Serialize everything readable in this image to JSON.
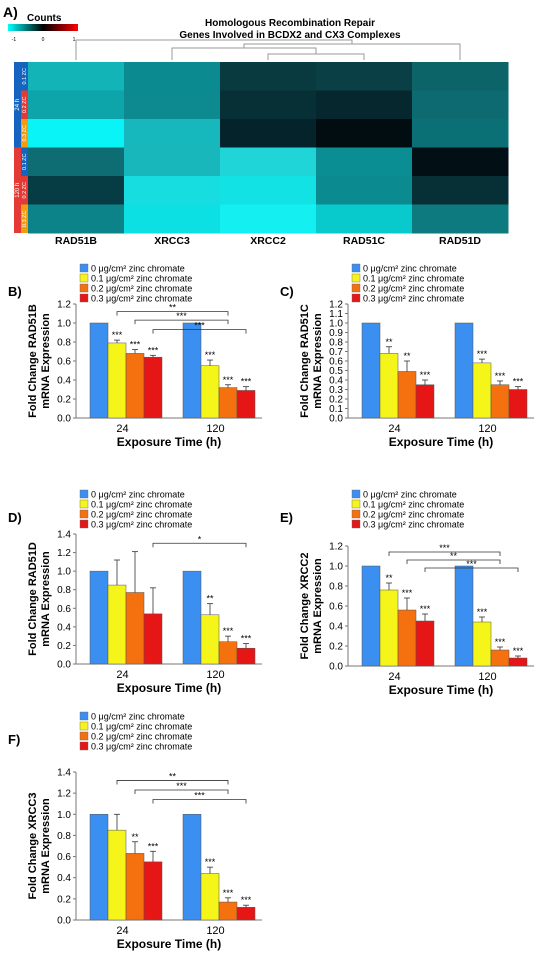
{
  "heatmap": {
    "panel_label": "A)",
    "legend_title": "Counts",
    "legend_ticks": [
      "-1",
      "0",
      "1"
    ],
    "title_line1": "Homologous Recombination Repair",
    "title_line2": "Genes Involved in BCDX2 and CX3 Complexes",
    "column_labels": [
      "RAD51B",
      "XRCC3",
      "XRCC2",
      "RAD51C",
      "RAD51D"
    ],
    "time_groups": [
      "24 h",
      "120 h"
    ],
    "row_labels": [
      "0.1 ZC",
      "0.2 ZC",
      "0.3 ZC",
      "0.1 ZC",
      "0.2 ZC",
      "0.3 ZC"
    ],
    "row_colors": [
      "#1565c0",
      "#e53935",
      "#f39c12",
      "#1565c0",
      "#e53935",
      "#f39c12"
    ],
    "time_colors": [
      "#1565c0",
      "#e53935"
    ],
    "cell_colors": [
      [
        "#12b4b8",
        "#0b8a8f",
        "#093a40",
        "#0a3f45",
        "#0c6368"
      ],
      [
        "#0ea5aa",
        "#0c8a8f",
        "#072f36",
        "#06272e",
        "#0c6a70"
      ],
      [
        "#08f4f6",
        "#17b8bd",
        "#04232a",
        "#020d12",
        "#0a7075"
      ],
      [
        "#0e6d73",
        "#17b7bc",
        "#1fd5d8",
        "#0b8e93",
        "#020f14"
      ],
      [
        "#063d44",
        "#18dde0",
        "#12e2e4",
        "#0b8a90",
        "#062f36"
      ],
      [
        "#0c8388",
        "#0ce0e3",
        "#14eff1",
        "#08c9cc",
        "#0d7a7f"
      ]
    ]
  },
  "chart_data": [
    {
      "type": "bar",
      "panel": "B)",
      "ylabel_line1": "Fold Change RAD51B",
      "ylabel_line2": "mRNA Expression",
      "xlabel": "Exposure Time (h)",
      "categories": [
        "24",
        "120"
      ],
      "yticks": [
        "0.0",
        "0.2",
        "0.4",
        "0.6",
        "0.8",
        "1.0",
        "1.2"
      ],
      "ylim": [
        0,
        1.2
      ],
      "series": [
        {
          "name": "0 μg/cm² zinc chromate",
          "values": [
            1.0,
            1.0
          ],
          "errors": [
            0,
            0
          ],
          "sig": [
            "",
            ""
          ]
        },
        {
          "name": "0.1 μg/cm² zinc chromate",
          "values": [
            0.79,
            0.55
          ],
          "errors": [
            0.03,
            0.06
          ],
          "sig": [
            "***",
            "***"
          ]
        },
        {
          "name": "0.2 μg/cm² zinc chromate",
          "values": [
            0.68,
            0.32
          ],
          "errors": [
            0.04,
            0.03
          ],
          "sig": [
            "***",
            "***"
          ]
        },
        {
          "name": "0.3 μg/cm² zinc chromate",
          "values": [
            0.64,
            0.29
          ],
          "errors": [
            0.02,
            0.04
          ],
          "sig": [
            "***",
            "***"
          ]
        }
      ],
      "comparisons": [
        {
          "label": "**",
          "from": 1,
          "to": 2,
          "y": 1.12
        },
        {
          "label": "***",
          "from": 2,
          "to": 2,
          "y": 1.03
        },
        {
          "label": "***",
          "from": 3,
          "to": 3,
          "y": 0.93
        }
      ]
    },
    {
      "type": "bar",
      "panel": "C)",
      "ylabel_line1": "Fold Change RAD51C",
      "ylabel_line2": "mRNA Expression",
      "xlabel": "Exposure Time (h)",
      "categories": [
        "24",
        "120"
      ],
      "yticks": [
        "0.0",
        "0.1",
        "0.2",
        "0.3",
        "0.4",
        "0.5",
        "0.6",
        "0.7",
        "0.8",
        "0.9",
        "1.0",
        "1.1",
        "1.2"
      ],
      "ylim": [
        0,
        1.2
      ],
      "series": [
        {
          "name": "0 μg/cm² zinc chromate",
          "values": [
            1.0,
            1.0
          ],
          "errors": [
            0,
            0
          ],
          "sig": [
            "",
            ""
          ]
        },
        {
          "name": "0.1 μg/cm² zinc chromate",
          "values": [
            0.68,
            0.58
          ],
          "errors": [
            0.07,
            0.04
          ],
          "sig": [
            "**",
            "***"
          ]
        },
        {
          "name": "0.2 μg/cm² zinc chromate",
          "values": [
            0.49,
            0.35
          ],
          "errors": [
            0.11,
            0.04
          ],
          "sig": [
            "**",
            "***"
          ]
        },
        {
          "name": "0.3 μg/cm² zinc chromate",
          "values": [
            0.35,
            0.3
          ],
          "errors": [
            0.05,
            0.03
          ],
          "sig": [
            "***",
            "***"
          ]
        }
      ],
      "comparisons": []
    },
    {
      "type": "bar",
      "panel": "D)",
      "ylabel_line1": "Fold Change RAD51D",
      "ylabel_line2": "mRNA Expression",
      "xlabel": "Exposure Time (h)",
      "categories": [
        "24",
        "120"
      ],
      "yticks": [
        "0.0",
        "0.2",
        "0.4",
        "0.6",
        "0.8",
        "1.0",
        "1.2",
        "1.4"
      ],
      "ylim": [
        0,
        1.4
      ],
      "series": [
        {
          "name": "0 μg/cm² zinc chromate",
          "values": [
            1.0,
            1.0
          ],
          "errors": [
            0,
            0
          ],
          "sig": [
            "",
            ""
          ]
        },
        {
          "name": "0.1 μg/cm² zinc chromate",
          "values": [
            0.85,
            0.53
          ],
          "errors": [
            0.27,
            0.12
          ],
          "sig": [
            "",
            "**"
          ]
        },
        {
          "name": "0.2 μg/cm² zinc chromate",
          "values": [
            0.77,
            0.24
          ],
          "errors": [
            0.44,
            0.06
          ],
          "sig": [
            "",
            "***"
          ]
        },
        {
          "name": "0.3 μg/cm² zinc chromate",
          "values": [
            0.54,
            0.17
          ],
          "errors": [
            0.28,
            0.05
          ],
          "sig": [
            "",
            "***"
          ]
        }
      ],
      "comparisons": [
        {
          "label": "*",
          "from": 3,
          "to": 3,
          "y": 1.3
        }
      ]
    },
    {
      "type": "bar",
      "panel": "E)",
      "ylabel_line1": "Fold Change XRCC2",
      "ylabel_line2": "mRNA Expression",
      "xlabel": "Exposure Time (h)",
      "categories": [
        "24",
        "120"
      ],
      "yticks": [
        "0.0",
        "0.2",
        "0.4",
        "0.6",
        "0.8",
        "1.0",
        "1.2"
      ],
      "ylim": [
        0,
        1.2
      ],
      "series": [
        {
          "name": "0 μg/cm² zinc chromate",
          "values": [
            1.0,
            1.0
          ],
          "errors": [
            0,
            0
          ],
          "sig": [
            "",
            ""
          ]
        },
        {
          "name": "0.1 μg/cm² zinc chromate",
          "values": [
            0.76,
            0.44
          ],
          "errors": [
            0.07,
            0.05
          ],
          "sig": [
            "**",
            "***"
          ]
        },
        {
          "name": "0.2 μg/cm² zinc chromate",
          "values": [
            0.56,
            0.16
          ],
          "errors": [
            0.12,
            0.03
          ],
          "sig": [
            "***",
            "***"
          ]
        },
        {
          "name": "0.3 μg/cm² zinc chromate",
          "values": [
            0.45,
            0.08
          ],
          "errors": [
            0.07,
            0.02
          ],
          "sig": [
            "***",
            "***"
          ]
        }
      ],
      "comparisons": [
        {
          "label": "***",
          "from": 1,
          "to": 2,
          "y": 1.14
        },
        {
          "label": "**",
          "from": 2,
          "to": 2,
          "y": 1.06
        },
        {
          "label": "***",
          "from": 3,
          "to": 3,
          "y": 0.98
        }
      ]
    },
    {
      "type": "bar",
      "panel": "F)",
      "ylabel_line1": "Fold Change XRCC3",
      "ylabel_line2": "mRNA Expression",
      "xlabel": "Exposure Time (h)",
      "categories": [
        "24",
        "120"
      ],
      "yticks": [
        "0.0",
        "0.2",
        "0.4",
        "0.6",
        "0.8",
        "1.0",
        "1.2",
        "1.4"
      ],
      "ylim": [
        0,
        1.4
      ],
      "series": [
        {
          "name": "0 μg/cm² zinc chromate",
          "values": [
            1.0,
            1.0
          ],
          "errors": [
            0,
            0
          ],
          "sig": [
            "",
            ""
          ]
        },
        {
          "name": "0.1 μg/cm² zinc chromate",
          "values": [
            0.85,
            0.44
          ],
          "errors": [
            0.15,
            0.06
          ],
          "sig": [
            "",
            "***"
          ]
        },
        {
          "name": "0.2 μg/cm² zinc chromate",
          "values": [
            0.63,
            0.17
          ],
          "errors": [
            0.11,
            0.04
          ],
          "sig": [
            "**",
            "***"
          ]
        },
        {
          "name": "0.3 μg/cm² zinc chromate",
          "values": [
            0.55,
            0.12
          ],
          "errors": [
            0.1,
            0.02
          ],
          "sig": [
            "***",
            "***"
          ]
        }
      ],
      "comparisons": [
        {
          "label": "**",
          "from": 1,
          "to": 2,
          "y": 1.32
        },
        {
          "label": "***",
          "from": 2,
          "to": 2,
          "y": 1.23
        },
        {
          "label": "***",
          "from": 3,
          "to": 3,
          "y": 1.14
        }
      ]
    }
  ],
  "colors": {
    "series": [
      "#3b8ff0",
      "#f5f51a",
      "#f5700f",
      "#e61616"
    ]
  }
}
